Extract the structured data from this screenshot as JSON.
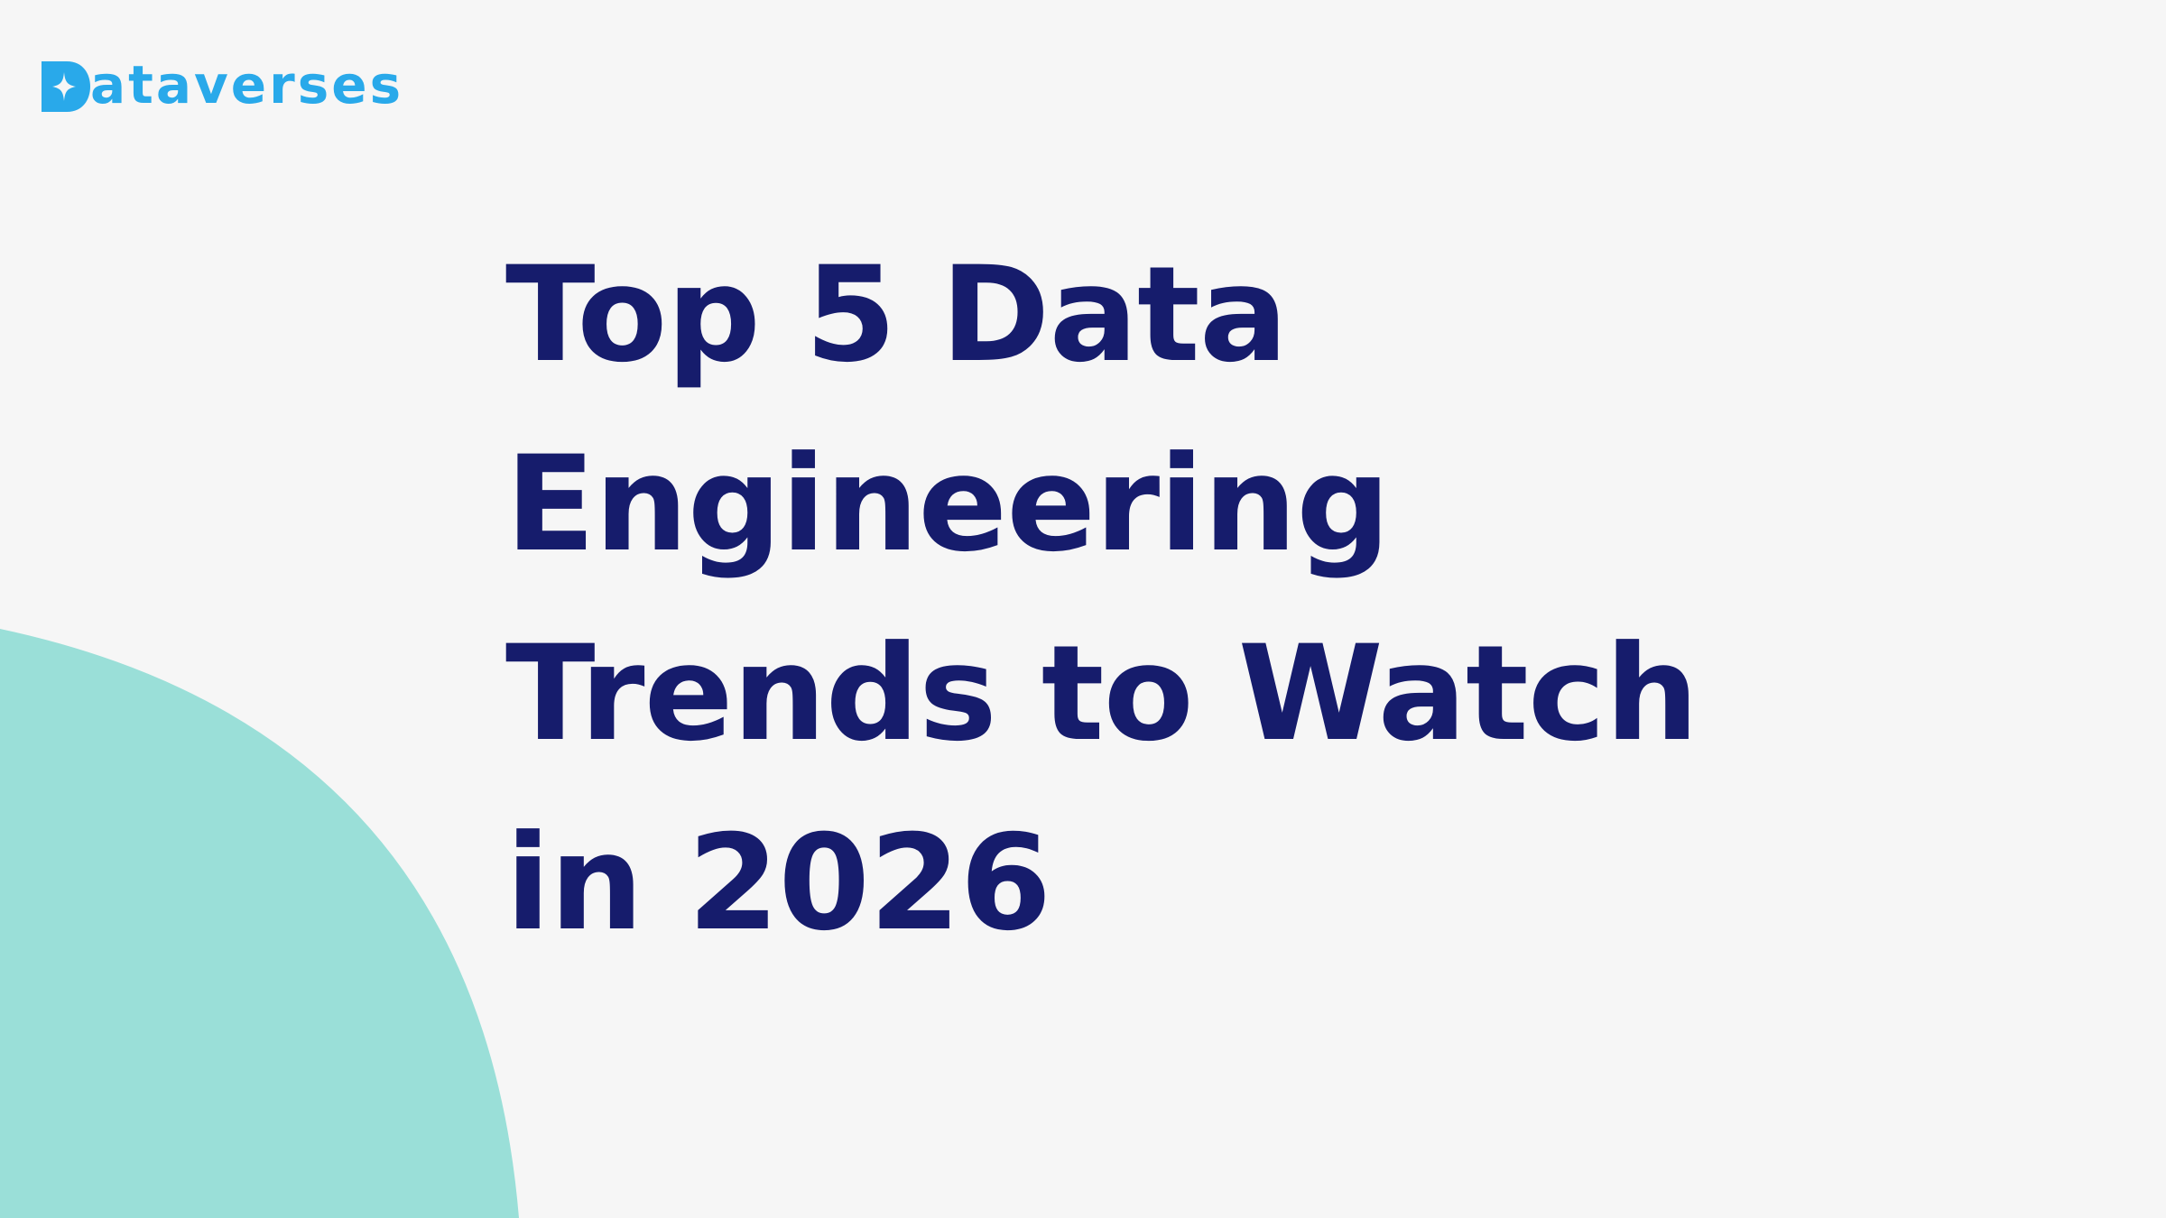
{
  "brand": {
    "name_rest": "ataverses",
    "color": "#29a9ea"
  },
  "headline": {
    "lines": [
      "Top 5 Data",
      "Engineering",
      "Trends to Watch",
      "in 2026"
    ],
    "color": "#161c6c"
  },
  "background": {
    "page_color": "#f6f6f6",
    "shape_color": "#9adfd8"
  }
}
